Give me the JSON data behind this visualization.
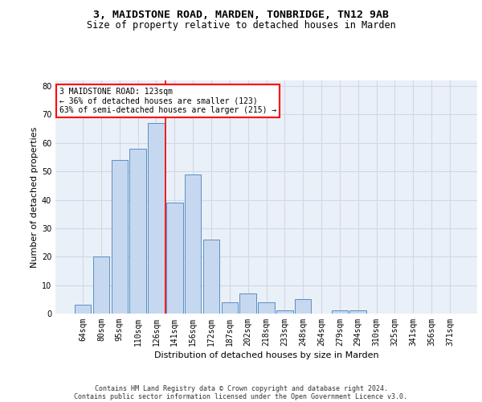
{
  "title1": "3, MAIDSTONE ROAD, MARDEN, TONBRIDGE, TN12 9AB",
  "title2": "Size of property relative to detached houses in Marden",
  "xlabel": "Distribution of detached houses by size in Marden",
  "ylabel": "Number of detached properties",
  "categories": [
    "64sqm",
    "80sqm",
    "95sqm",
    "110sqm",
    "126sqm",
    "141sqm",
    "156sqm",
    "172sqm",
    "187sqm",
    "202sqm",
    "218sqm",
    "233sqm",
    "248sqm",
    "264sqm",
    "279sqm",
    "294sqm",
    "310sqm",
    "325sqm",
    "341sqm",
    "356sqm",
    "371sqm"
  ],
  "values": [
    3,
    20,
    54,
    58,
    67,
    39,
    49,
    26,
    4,
    7,
    4,
    1,
    5,
    0,
    1,
    1,
    0,
    0,
    0,
    0,
    0
  ],
  "bar_color": "#c5d8f0",
  "bar_edge_color": "#5a8fc2",
  "grid_color": "#d0d8e8",
  "background_color": "#eaf0f8",
  "red_line_x": 4.5,
  "annotation_line1": "3 MAIDSTONE ROAD: 123sqm",
  "annotation_line2": "← 36% of detached houses are smaller (123)",
  "annotation_line3": "63% of semi-detached houses are larger (215) →",
  "annotation_box_color": "white",
  "annotation_border_color": "red",
  "footnote1": "Contains HM Land Registry data © Crown copyright and database right 2024.",
  "footnote2": "Contains public sector information licensed under the Open Government Licence v3.0.",
  "ylim": [
    0,
    82
  ],
  "yticks": [
    0,
    10,
    20,
    30,
    40,
    50,
    60,
    70,
    80
  ],
  "title1_fontsize": 9.5,
  "title2_fontsize": 8.5,
  "xlabel_fontsize": 8,
  "ylabel_fontsize": 8,
  "tick_fontsize": 7,
  "annotation_fontsize": 7,
  "footnote_fontsize": 6
}
